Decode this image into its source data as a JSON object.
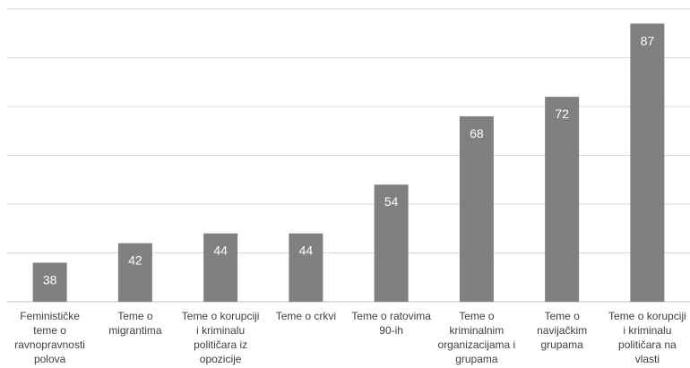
{
  "chart_data": {
    "type": "bar",
    "categories": [
      "Feminističke teme o ravnopravnosti polova",
      "Teme o migrantima",
      "Teme o korupciji i kriminalu političara iz opozicije",
      "Teme o crkvi",
      "Teme o ratovima 90-ih",
      "Teme o kriminalnim organizacijama i grupama",
      "Teme o navijačkim grupama",
      "Teme o korupciji i kriminalu političara na vlasti"
    ],
    "category_lines": [
      [
        "Feminističke",
        "teme o",
        "ravnopravnosti",
        "polova"
      ],
      [
        "Teme o",
        "migrantima"
      ],
      [
        "Teme o korupciji",
        "i kriminalu",
        "političara iz",
        "opozicije"
      ],
      [
        "Teme o crkvi"
      ],
      [
        "Teme o ratovima",
        "90-ih"
      ],
      [
        "Teme o",
        "kriminalnim",
        "organizacijama i",
        "grupama"
      ],
      [
        "Teme o",
        "navijačkim",
        "grupama"
      ],
      [
        "Teme o korupciji",
        "i kriminalu",
        "političara na",
        "vlasti"
      ]
    ],
    "values": [
      38,
      42,
      44,
      44,
      54,
      68,
      72,
      87
    ],
    "ylim": [
      30,
      90
    ],
    "grid": true,
    "bar_color": "#808080",
    "data_label_color": "#ffffff"
  }
}
